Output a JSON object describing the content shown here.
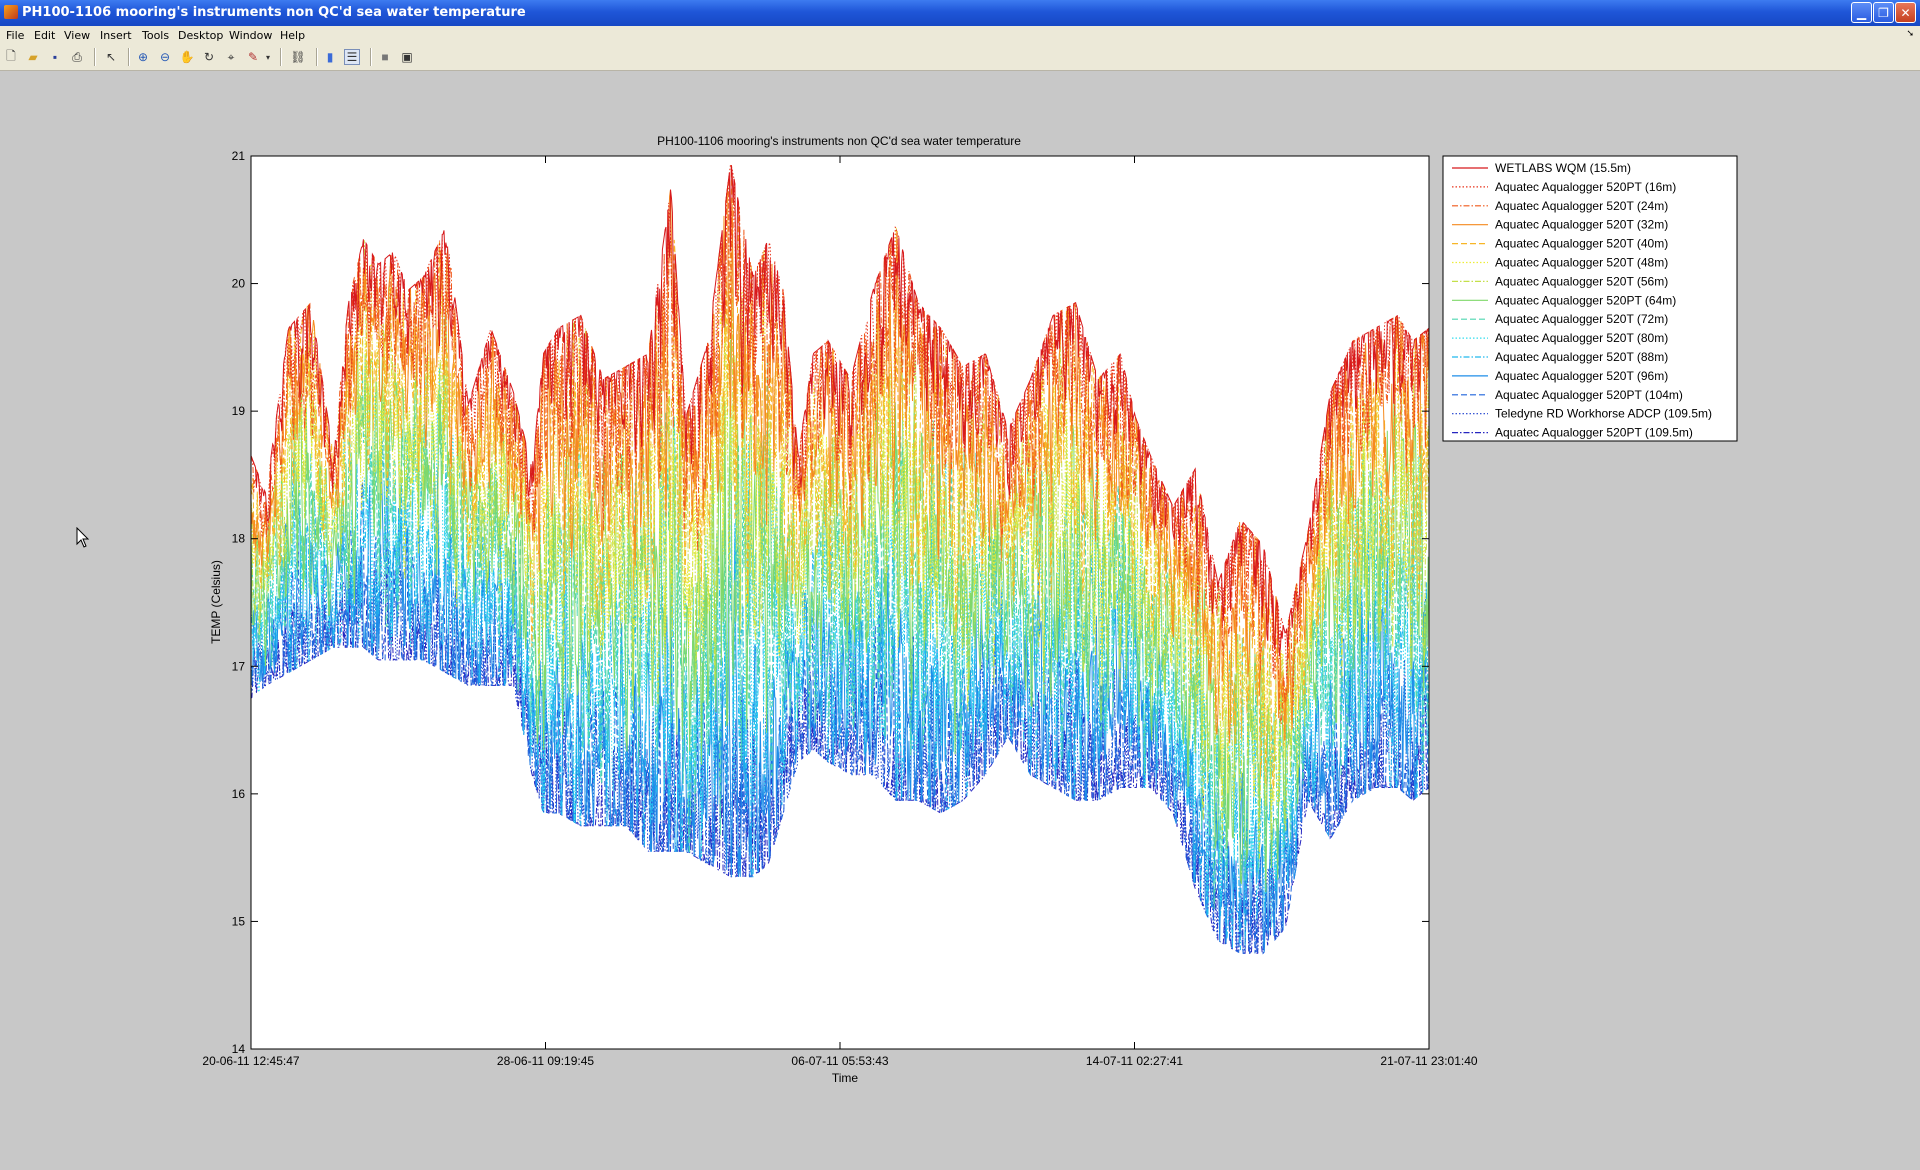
{
  "window": {
    "title": "PH100-1106 mooring's instruments non QC'd sea water temperature",
    "controls": [
      "minimize",
      "restore",
      "close"
    ]
  },
  "menu": {
    "items": [
      "File",
      "Edit",
      "View",
      "Insert",
      "Tools",
      "Desktop",
      "Window",
      "Help"
    ]
  },
  "toolbar": {
    "buttons": [
      "new-figure",
      "open-file",
      "save",
      "print",
      "edit-plot",
      "zoom-in",
      "zoom-out",
      "pan",
      "rotate-3d",
      "data-cursor",
      "brush",
      "brush-menu",
      "link-plot",
      "insert-colorbar",
      "insert-legend",
      "hide-plot-tools",
      "show-plot-tools"
    ]
  },
  "chart_data": {
    "type": "line",
    "title": "PH100-1106 mooring's instruments non QC'd sea water temperature",
    "xlabel": "Time",
    "ylabel": "TEMP (Celsius)",
    "x_ticks": [
      "20-06-11 12:45:47",
      "28-06-11 09:19:45",
      "06-07-11 05:53:43",
      "14-07-11 02:27:41",
      "21-07-11 23:01:40"
    ],
    "y_ticks": [
      "14",
      "15",
      "16",
      "17",
      "18",
      "19",
      "20",
      "21"
    ],
    "ylim": [
      14,
      21
    ],
    "xlim_days": [
      0,
      31.43
    ],
    "legend_placement": "outside-right-top",
    "envelope_days": [
      0,
      0.4,
      1.0,
      1.6,
      2.2,
      2.6,
      3.0,
      3.4,
      3.8,
      4.2,
      4.6,
      5.2,
      5.8,
      6.4,
      7.0,
      7.5,
      7.8,
      8.2,
      8.8,
      9.4,
      10.0,
      10.6,
      11.2,
      11.6,
      12.2,
      12.8,
      13.4,
      13.8,
      14.2,
      14.6,
      15.0,
      15.4,
      16.0,
      16.6,
      17.2,
      17.8,
      18.4,
      19.0,
      19.6,
      20.2,
      20.8,
      21.4,
      22.0,
      22.6,
      23.2,
      23.6,
      24.0,
      24.6,
      25.2,
      25.8,
      26.4,
      27.0,
      27.6,
      28.2,
      28.8,
      29.4,
      30.0,
      30.6,
      31.0,
      31.43
    ],
    "envelope_top": [
      18.6,
      18.3,
      19.6,
      19.8,
      18.6,
      19.8,
      20.3,
      20.1,
      20.2,
      19.9,
      20.0,
      20.4,
      19.0,
      19.6,
      19.1,
      18.5,
      19.4,
      19.6,
      19.7,
      19.2,
      19.3,
      19.4,
      20.7,
      18.9,
      19.5,
      20.9,
      20.0,
      20.3,
      19.9,
      18.6,
      19.4,
      19.5,
      19.2,
      19.9,
      20.4,
      19.8,
      19.6,
      19.3,
      19.4,
      18.8,
      19.2,
      19.7,
      19.8,
      19.2,
      19.4,
      18.9,
      18.6,
      18.2,
      18.5,
      17.6,
      18.1,
      17.9,
      17.2,
      18.0,
      19.1,
      19.5,
      19.6,
      19.7,
      19.5,
      19.6
    ],
    "envelope_bottom": [
      16.8,
      16.9,
      17.0,
      17.1,
      17.2,
      17.2,
      17.2,
      17.1,
      17.1,
      17.1,
      17.1,
      17.0,
      16.9,
      16.9,
      16.9,
      16.2,
      15.9,
      15.9,
      15.8,
      15.8,
      15.8,
      15.6,
      15.6,
      15.6,
      15.5,
      15.4,
      15.4,
      15.5,
      15.9,
      16.3,
      16.4,
      16.3,
      16.2,
      16.2,
      16.0,
      16.0,
      15.9,
      16.0,
      16.2,
      16.5,
      16.2,
      16.1,
      16.0,
      16.0,
      16.1,
      16.1,
      16.1,
      15.9,
      15.3,
      14.9,
      14.8,
      14.8,
      15.0,
      16.0,
      15.7,
      16.0,
      16.1,
      16.1,
      16.0,
      16.1
    ],
    "series": [
      {
        "name": "WETLABS WQM (15.5m)",
        "color": "#d7191c",
        "dash": "solid",
        "depth_frac": 0.0
      },
      {
        "name": "Aquatec Aqualogger 520PT (16m)",
        "color": "#e8341c",
        "dash": "dotted",
        "depth_frac": 0.03
      },
      {
        "name": "Aquatec Aqualogger 520T (24m)",
        "color": "#f0591a",
        "dash": "dashdot",
        "depth_frac": 0.09
      },
      {
        "name": "Aquatec Aqualogger 520T (32m)",
        "color": "#f58a1f",
        "dash": "solid",
        "depth_frac": 0.17
      },
      {
        "name": "Aquatec Aqualogger 520T (40m)",
        "color": "#f7b627",
        "dash": "dashed",
        "depth_frac": 0.25
      },
      {
        "name": "Aquatec Aqualogger 520T (48m)",
        "color": "#eded39",
        "dash": "dotted",
        "depth_frac": 0.33
      },
      {
        "name": "Aquatec Aqualogger 520T (56m)",
        "color": "#c4e04a",
        "dash": "dashdot",
        "depth_frac": 0.41
      },
      {
        "name": "Aquatec Aqualogger 520PT (64m)",
        "color": "#7fd86a",
        "dash": "solid",
        "depth_frac": 0.49
      },
      {
        "name": "Aquatec Aqualogger 520T (72m)",
        "color": "#4fd6b0",
        "dash": "dashed",
        "depth_frac": 0.57
      },
      {
        "name": "Aquatec Aqualogger 520T (80m)",
        "color": "#33ddee",
        "dash": "dotted",
        "depth_frac": 0.65
      },
      {
        "name": "Aquatec Aqualogger 520T (88m)",
        "color": "#22b9ee",
        "dash": "dashdot",
        "depth_frac": 0.74
      },
      {
        "name": "Aquatec Aqualogger 520T (96m)",
        "color": "#1f8ee8",
        "dash": "solid",
        "depth_frac": 0.83
      },
      {
        "name": "Aquatec Aqualogger 520PT (104m)",
        "color": "#1e63dc",
        "dash": "dashed",
        "depth_frac": 0.91
      },
      {
        "name": "Teledyne RD Workhorse ADCP (109.5m)",
        "color": "#1c3fce",
        "dash": "dotted",
        "depth_frac": 0.96
      },
      {
        "name": "Aquatec Aqualogger 520PT (109.5m)",
        "color": "#2626c0",
        "dash": "dashdot",
        "depth_frac": 1.0
      }
    ]
  }
}
